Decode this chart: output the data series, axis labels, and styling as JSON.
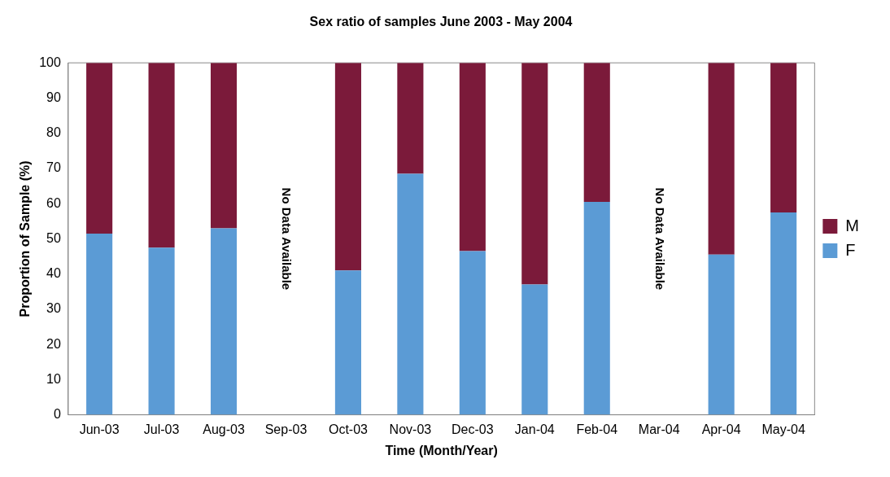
{
  "chart_data": {
    "type": "bar",
    "stacked": true,
    "title": "Sex ratio of samples June 2003 - May 2004",
    "xlabel": "Time (Month/Year)",
    "ylabel": "Proportion of Sample (%)",
    "categories": [
      "Jun-03",
      "Jul-03",
      "Aug-03",
      "Sep-03",
      "Oct-03",
      "Nov-03",
      "Dec-03",
      "Jan-04",
      "Feb-04",
      "Mar-04",
      "Apr-04",
      "May-04"
    ],
    "series": [
      {
        "name": "F",
        "color": "#5b9bd5",
        "values": [
          51.5,
          47.5,
          53,
          null,
          41,
          68.5,
          46.5,
          37,
          60.5,
          null,
          45.5,
          57.5
        ]
      },
      {
        "name": "M",
        "color": "#7b1a3a",
        "values": [
          48.5,
          52.5,
          47,
          null,
          59,
          31.5,
          53.5,
          63,
          39.5,
          null,
          54.5,
          42.5
        ]
      }
    ],
    "ylim": [
      0,
      100
    ],
    "yticks": [
      0,
      10,
      20,
      30,
      40,
      50,
      60,
      70,
      80,
      90,
      100
    ],
    "grid": false,
    "legend": "right",
    "annotations": [
      "No Data Available",
      "No Data Available"
    ]
  }
}
